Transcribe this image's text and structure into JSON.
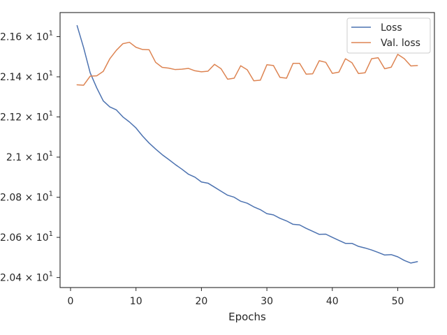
{
  "chart_data": {
    "type": "line",
    "title": "",
    "xlabel": "Epochs",
    "ylabel": "",
    "xlim": [
      -1.6,
      55.6
    ],
    "ylim": [
      20.35,
      21.72
    ],
    "grid": false,
    "legend_position": "top-right",
    "x_ticks": [
      0,
      10,
      20,
      30,
      40,
      50
    ],
    "x_tick_labels": [
      "0",
      "10",
      "20",
      "30",
      "40",
      "50"
    ],
    "y_ticks": [
      20.4,
      20.6,
      20.8,
      21.0,
      21.2,
      21.4,
      21.6
    ],
    "y_tick_labels": [
      "2.04 × 10^1",
      "2.06 × 10^1",
      "2.08 × 10^1",
      "2.1 × 10^1",
      "2.12 × 10^1",
      "2.14 × 10^1",
      "2.16 × 10^1"
    ],
    "x": [
      1,
      2,
      3,
      4,
      5,
      6,
      7,
      8,
      9,
      10,
      11,
      12,
      13,
      14,
      15,
      16,
      17,
      18,
      19,
      20,
      21,
      22,
      23,
      24,
      25,
      26,
      27,
      28,
      29,
      30,
      31,
      32,
      33,
      34,
      35,
      36,
      37,
      38,
      39,
      40,
      41,
      42,
      43,
      44,
      45,
      46,
      47,
      48,
      49,
      50,
      51,
      52,
      53
    ],
    "series": [
      {
        "name": "Loss",
        "color": "#4c72b0",
        "values": [
          21.655,
          21.545,
          21.42,
          21.345,
          21.28,
          21.25,
          21.235,
          21.2,
          21.175,
          21.145,
          21.105,
          21.07,
          21.04,
          21.012,
          20.988,
          20.963,
          20.94,
          20.915,
          20.9,
          20.876,
          20.87,
          20.85,
          20.83,
          20.81,
          20.8,
          20.78,
          20.77,
          20.752,
          20.738,
          20.718,
          20.712,
          20.695,
          20.682,
          20.665,
          20.662,
          20.645,
          20.63,
          20.615,
          20.616,
          20.6,
          20.585,
          20.57,
          20.57,
          20.555,
          20.547,
          20.537,
          20.525,
          20.512,
          20.514,
          20.503,
          20.485,
          20.472,
          20.479
        ]
      },
      {
        "name": "Val. loss",
        "color": "#dd8452",
        "values": [
          21.36,
          21.358,
          21.403,
          21.405,
          21.427,
          21.49,
          21.532,
          21.565,
          21.572,
          21.547,
          21.536,
          21.535,
          21.472,
          21.447,
          21.443,
          21.436,
          21.438,
          21.442,
          21.43,
          21.425,
          21.428,
          21.462,
          21.44,
          21.388,
          21.393,
          21.455,
          21.435,
          21.38,
          21.383,
          21.46,
          21.456,
          21.397,
          21.393,
          21.467,
          21.467,
          21.413,
          21.415,
          21.48,
          21.472,
          21.417,
          21.423,
          21.49,
          21.47,
          21.416,
          21.42,
          21.49,
          21.495,
          21.44,
          21.448,
          21.512,
          21.49,
          21.454,
          21.456
        ]
      }
    ]
  }
}
